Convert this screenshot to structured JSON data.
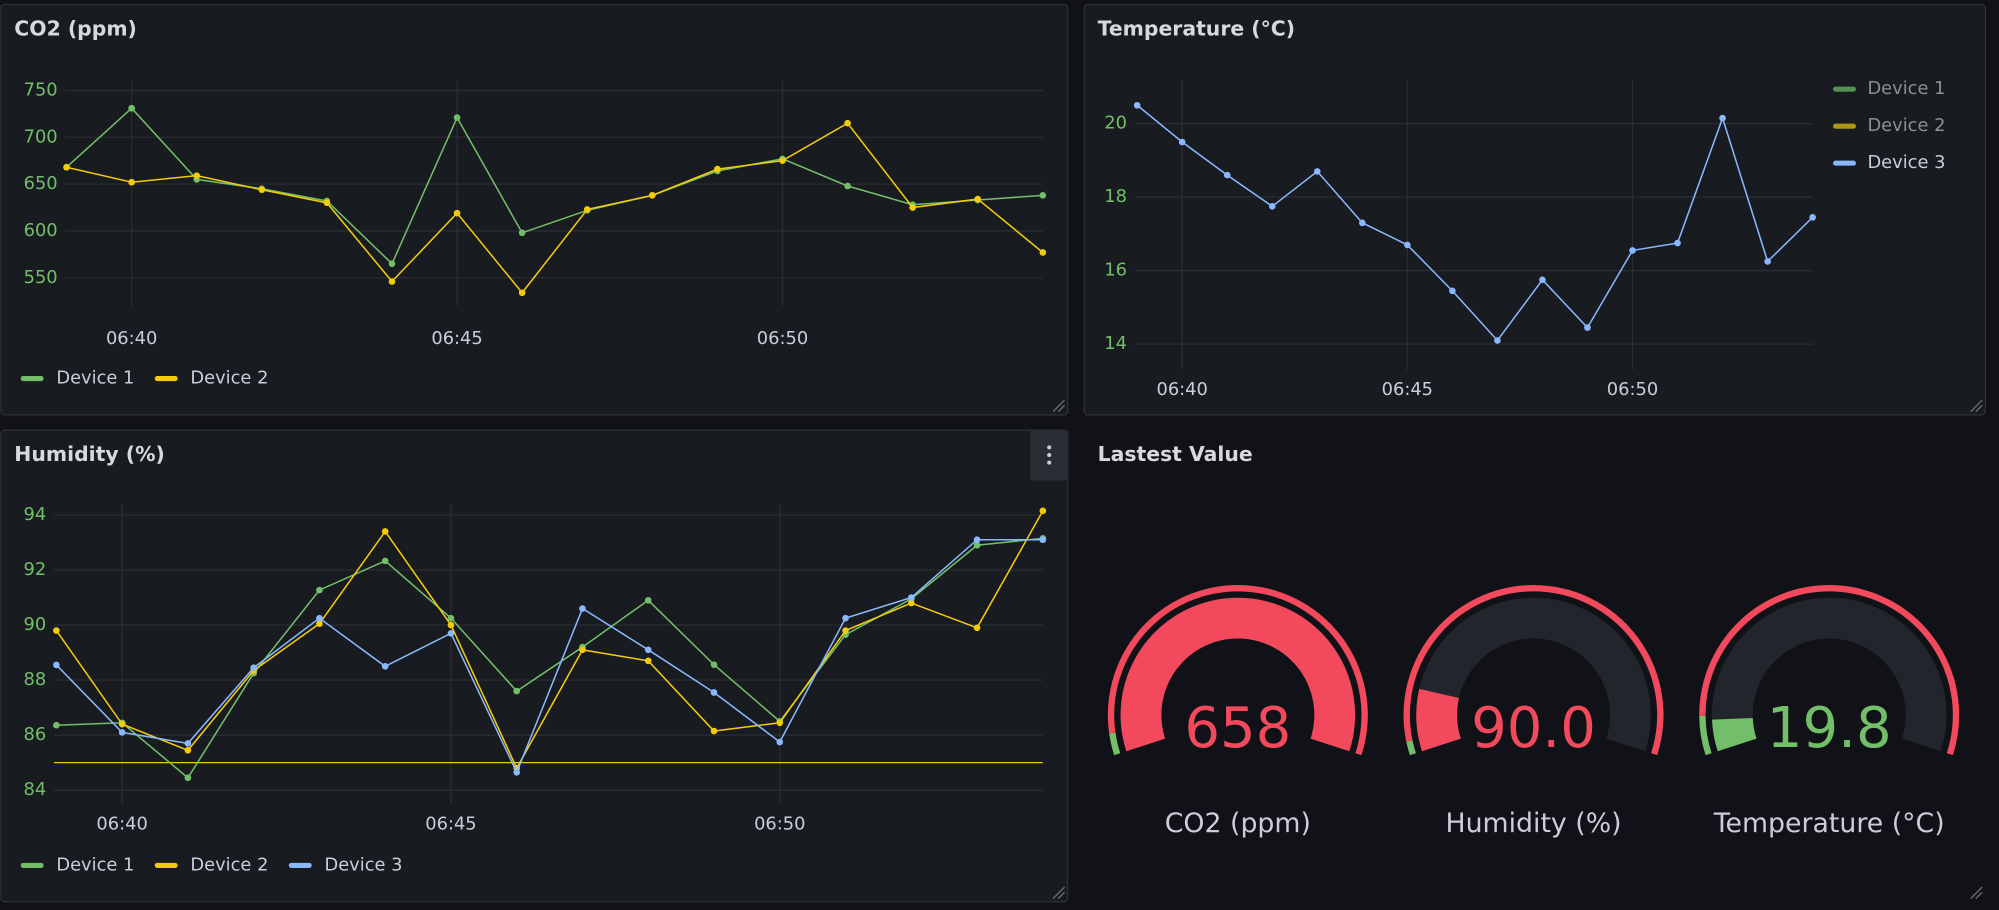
{
  "chart_data": [
    {
      "type": "line",
      "title": "CO2 (ppm)",
      "x": [
        "06:39",
        "06:40",
        "06:41",
        "06:42",
        "06:43",
        "06:44",
        "06:45",
        "06:46",
        "06:47",
        "06:48",
        "06:49",
        "06:50",
        "06:51",
        "06:52",
        "06:53",
        "06:54"
      ],
      "xlim": [
        "06:39",
        "06:54"
      ],
      "xticks": [
        "06:40",
        "06:45",
        "06:50"
      ],
      "ylim": [
        520,
        760
      ],
      "yticks": [
        550,
        600,
        650,
        700,
        750
      ],
      "grid": true,
      "legend": "bottom",
      "series": [
        {
          "name": "Device 1",
          "color": "#73bf69",
          "values": [
            668,
            731,
            655,
            645,
            632,
            565,
            721,
            598,
            622,
            638,
            664,
            677,
            648,
            628,
            633,
            638
          ]
        },
        {
          "name": "Device 2",
          "color": "#f2cc0c",
          "values": [
            668,
            652,
            659,
            644,
            630,
            546,
            619,
            534,
            623,
            638,
            666,
            675,
            715,
            625,
            634,
            577
          ]
        }
      ]
    },
    {
      "type": "line",
      "title": "Temperature (°C)",
      "x": [
        "06:39",
        "06:40",
        "06:41",
        "06:42",
        "06:43",
        "06:44",
        "06:45",
        "06:46",
        "06:47",
        "06:48",
        "06:49",
        "06:50",
        "06:51",
        "06:52",
        "06:53",
        "06:54"
      ],
      "xlim": [
        "06:39",
        "06:54"
      ],
      "xticks": [
        "06:40",
        "06:45",
        "06:50"
      ],
      "ylim": [
        13.3,
        21.2
      ],
      "yticks": [
        14,
        16,
        18,
        20
      ],
      "grid": true,
      "legend": "right",
      "series": [
        {
          "name": "Device 1",
          "color": "#73bf69",
          "hidden": true,
          "values": [
            null,
            null,
            null,
            null,
            null,
            null,
            null,
            null,
            null,
            null,
            null,
            null,
            null,
            null,
            null,
            null
          ]
        },
        {
          "name": "Device 2",
          "color": "#f2cc0c",
          "hidden": true,
          "values": [
            null,
            null,
            null,
            null,
            null,
            null,
            null,
            null,
            null,
            null,
            null,
            null,
            null,
            null,
            null,
            null
          ]
        },
        {
          "name": "Device 3",
          "color": "#8ab8ff",
          "values": [
            20.5,
            19.5,
            18.6,
            17.75,
            18.7,
            17.3,
            16.7,
            15.45,
            14.1,
            15.75,
            14.45,
            16.55,
            16.75,
            20.15,
            16.25,
            17.45
          ]
        }
      ]
    },
    {
      "type": "line",
      "title": "Humidity (%)",
      "x": [
        "06:39",
        "06:40",
        "06:41",
        "06:42",
        "06:43",
        "06:44",
        "06:45",
        "06:46",
        "06:47",
        "06:48",
        "06:49",
        "06:50",
        "06:51",
        "06:52",
        "06:53",
        "06:54"
      ],
      "xlim": [
        "06:39",
        "06:54"
      ],
      "xticks": [
        "06:40",
        "06:45",
        "06:50"
      ],
      "ylim": [
        83.5,
        94.4
      ],
      "yticks": [
        84,
        86,
        88,
        90,
        92,
        94
      ],
      "grid": true,
      "legend": "bottom",
      "threshold": {
        "value": 85,
        "color": "#f2cc0c"
      },
      "series": [
        {
          "name": "Device 1",
          "color": "#73bf69",
          "values": [
            86.36,
            86.45,
            84.45,
            88.25,
            91.27,
            92.33,
            90.25,
            87.6,
            89.2,
            90.9,
            88.56,
            86.5,
            89.65,
            90.95,
            92.9,
            93.15
          ]
        },
        {
          "name": "Device 2",
          "color": "#f2cc0c",
          "values": [
            89.8,
            86.4,
            85.45,
            88.35,
            90.05,
            93.4,
            90.0,
            84.8,
            89.1,
            88.7,
            86.15,
            86.45,
            89.8,
            90.8,
            89.9,
            94.15
          ]
        },
        {
          "name": "Device 3",
          "color": "#8ab8ff",
          "values": [
            88.55,
            86.1,
            85.7,
            88.45,
            90.25,
            88.5,
            89.7,
            84.65,
            90.6,
            89.1,
            87.55,
            85.75,
            90.25,
            91.0,
            93.1,
            93.1
          ]
        }
      ]
    },
    {
      "type": "gauge",
      "title": "Lastest Value",
      "categories": [
        "CO2 (ppm)",
        "Humidity (%)",
        "Temperature (°C)"
      ],
      "values": [
        658,
        90,
        19.8
      ],
      "value_labels": [
        "658",
        "90.0",
        "19.8"
      ],
      "min": [
        0,
        85,
        19
      ],
      "max": [
        658,
        120,
        30
      ],
      "base_color": "#73bf69",
      "thresholds": [
        [
          {
            "value": 30,
            "color": "#f2495c"
          }
        ],
        [
          {
            "value": 86,
            "color": "#f2495c"
          }
        ],
        [
          {
            "value": 19.9,
            "color": "#f2495c"
          }
        ]
      ]
    }
  ]
}
